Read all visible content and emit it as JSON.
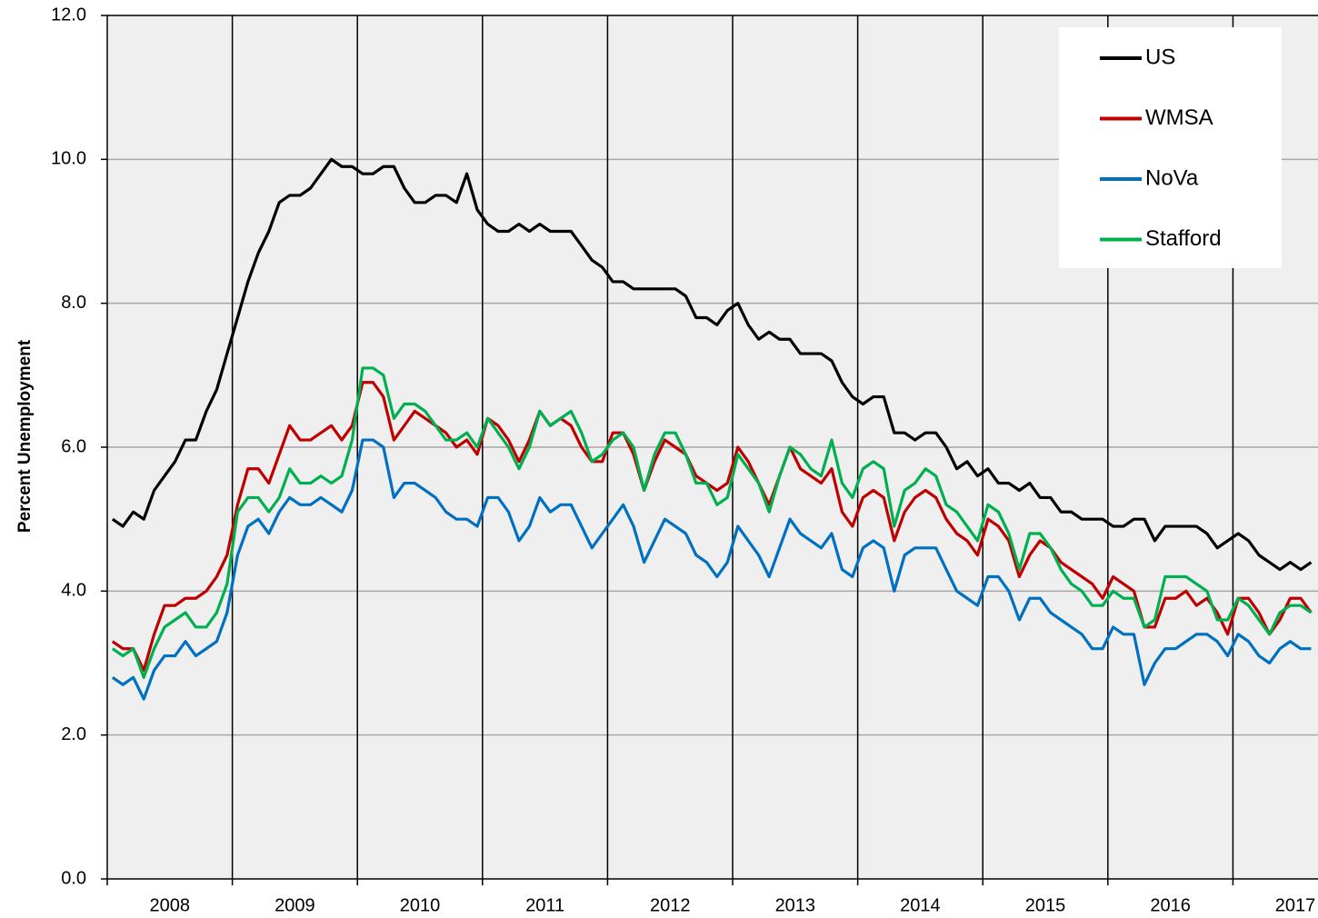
{
  "chart_data": {
    "type": "line",
    "ylabel": "Percent Unemployment",
    "x": [
      2008.042,
      2008.125,
      2008.208,
      2008.292,
      2008.375,
      2008.458,
      2008.542,
      2008.625,
      2008.708,
      2008.792,
      2008.875,
      2008.958,
      2009.042,
      2009.125,
      2009.208,
      2009.292,
      2009.375,
      2009.458,
      2009.542,
      2009.625,
      2009.708,
      2009.792,
      2009.875,
      2009.958,
      2010.042,
      2010.125,
      2010.208,
      2010.292,
      2010.375,
      2010.458,
      2010.542,
      2010.625,
      2010.708,
      2010.792,
      2010.875,
      2010.958,
      2011.042,
      2011.125,
      2011.208,
      2011.292,
      2011.375,
      2011.458,
      2011.542,
      2011.625,
      2011.708,
      2011.792,
      2011.875,
      2011.958,
      2012.042,
      2012.125,
      2012.208,
      2012.292,
      2012.375,
      2012.458,
      2012.542,
      2012.625,
      2012.708,
      2012.792,
      2012.875,
      2012.958,
      2013.042,
      2013.125,
      2013.208,
      2013.292,
      2013.375,
      2013.458,
      2013.542,
      2013.625,
      2013.708,
      2013.792,
      2013.875,
      2013.958,
      2014.042,
      2014.125,
      2014.208,
      2014.292,
      2014.375,
      2014.458,
      2014.542,
      2014.625,
      2014.708,
      2014.792,
      2014.875,
      2014.958,
      2015.042,
      2015.125,
      2015.208,
      2015.292,
      2015.375,
      2015.458,
      2015.542,
      2015.625,
      2015.708,
      2015.792,
      2015.875,
      2015.958,
      2016.042,
      2016.125,
      2016.208,
      2016.292,
      2016.375,
      2016.458,
      2016.542,
      2016.625,
      2016.708,
      2016.792,
      2016.875,
      2016.958,
      2017.042,
      2017.125,
      2017.208,
      2017.292,
      2017.375,
      2017.458,
      2017.542,
      2017.625
    ],
    "series": [
      {
        "name": "US",
        "color": "#000000",
        "values": [
          5.0,
          4.9,
          5.1,
          5.0,
          5.4,
          5.6,
          5.8,
          6.1,
          6.1,
          6.5,
          6.8,
          7.3,
          7.8,
          8.3,
          8.7,
          9.0,
          9.4,
          9.5,
          9.5,
          9.6,
          9.8,
          10.0,
          9.9,
          9.9,
          9.8,
          9.8,
          9.9,
          9.9,
          9.6,
          9.4,
          9.4,
          9.5,
          9.5,
          9.4,
          9.8,
          9.3,
          9.1,
          9.0,
          9.0,
          9.1,
          9.0,
          9.1,
          9.0,
          9.0,
          9.0,
          8.8,
          8.6,
          8.5,
          8.3,
          8.3,
          8.2,
          8.2,
          8.2,
          8.2,
          8.2,
          8.1,
          7.8,
          7.8,
          7.7,
          7.9,
          8.0,
          7.7,
          7.5,
          7.6,
          7.5,
          7.5,
          7.3,
          7.3,
          7.3,
          7.2,
          6.9,
          6.7,
          6.6,
          6.7,
          6.7,
          6.2,
          6.2,
          6.1,
          6.2,
          6.2,
          6.0,
          5.7,
          5.8,
          5.6,
          5.7,
          5.5,
          5.5,
          5.4,
          5.5,
          5.3,
          5.3,
          5.1,
          5.1,
          5.0,
          5.0,
          5.0,
          4.9,
          4.9,
          5.0,
          5.0,
          4.7,
          4.9,
          4.9,
          4.9,
          4.9,
          4.8,
          4.6,
          4.7,
          4.8,
          4.7,
          4.5,
          4.4,
          4.3,
          4.4,
          4.3,
          4.4
        ]
      },
      {
        "name": "WMSA",
        "color": "#c00000",
        "values": [
          3.3,
          3.2,
          3.2,
          2.9,
          3.4,
          3.8,
          3.8,
          3.9,
          3.9,
          4.0,
          4.2,
          4.5,
          5.2,
          5.7,
          5.7,
          5.5,
          5.9,
          6.3,
          6.1,
          6.1,
          6.2,
          6.3,
          6.1,
          6.3,
          6.9,
          6.9,
          6.7,
          6.1,
          6.3,
          6.5,
          6.4,
          6.3,
          6.2,
          6.0,
          6.1,
          5.9,
          6.4,
          6.3,
          6.1,
          5.8,
          6.1,
          6.5,
          6.3,
          6.4,
          6.3,
          6.0,
          5.8,
          5.8,
          6.2,
          6.2,
          5.9,
          5.4,
          5.8,
          6.1,
          6.0,
          5.9,
          5.6,
          5.5,
          5.4,
          5.5,
          6.0,
          5.8,
          5.5,
          5.2,
          5.6,
          6.0,
          5.7,
          5.6,
          5.5,
          5.7,
          5.1,
          4.9,
          5.3,
          5.4,
          5.3,
          4.7,
          5.1,
          5.3,
          5.4,
          5.3,
          5.0,
          4.8,
          4.7,
          4.5,
          5.0,
          4.9,
          4.7,
          4.2,
          4.5,
          4.7,
          4.6,
          4.4,
          4.3,
          4.2,
          4.1,
          3.9,
          4.2,
          4.1,
          4.0,
          3.5,
          3.5,
          3.9,
          3.9,
          4.0,
          3.8,
          3.9,
          3.7,
          3.4,
          3.9,
          3.9,
          3.7,
          3.4,
          3.6,
          3.9,
          3.9,
          3.7
        ]
      },
      {
        "name": "NoVa",
        "color": "#0070c0",
        "values": [
          2.8,
          2.7,
          2.8,
          2.5,
          2.9,
          3.1,
          3.1,
          3.3,
          3.1,
          3.2,
          3.3,
          3.7,
          4.5,
          4.9,
          5.0,
          4.8,
          5.1,
          5.3,
          5.2,
          5.2,
          5.3,
          5.2,
          5.1,
          5.4,
          6.1,
          6.1,
          6.0,
          5.3,
          5.5,
          5.5,
          5.4,
          5.3,
          5.1,
          5.0,
          5.0,
          4.9,
          5.3,
          5.3,
          5.1,
          4.7,
          4.9,
          5.3,
          5.1,
          5.2,
          5.2,
          4.9,
          4.6,
          4.8,
          5.0,
          5.2,
          4.9,
          4.4,
          4.7,
          5.0,
          4.9,
          4.8,
          4.5,
          4.4,
          4.2,
          4.4,
          4.9,
          4.7,
          4.5,
          4.2,
          4.6,
          5.0,
          4.8,
          4.7,
          4.6,
          4.8,
          4.3,
          4.2,
          4.6,
          4.7,
          4.6,
          4.0,
          4.5,
          4.6,
          4.6,
          4.6,
          4.3,
          4.0,
          3.9,
          3.8,
          4.2,
          4.2,
          4.0,
          3.6,
          3.9,
          3.9,
          3.7,
          3.6,
          3.5,
          3.4,
          3.2,
          3.2,
          3.5,
          3.4,
          3.4,
          2.7,
          3.0,
          3.2,
          3.2,
          3.3,
          3.4,
          3.4,
          3.3,
          3.1,
          3.4,
          3.3,
          3.1,
          3.0,
          3.2,
          3.3,
          3.2,
          3.2
        ]
      },
      {
        "name": "Stafford",
        "color": "#00b050",
        "values": [
          3.2,
          3.1,
          3.2,
          2.8,
          3.2,
          3.5,
          3.6,
          3.7,
          3.5,
          3.5,
          3.7,
          4.1,
          5.1,
          5.3,
          5.3,
          5.1,
          5.3,
          5.7,
          5.5,
          5.5,
          5.6,
          5.5,
          5.6,
          6.1,
          7.1,
          7.1,
          7.0,
          6.4,
          6.6,
          6.6,
          6.5,
          6.3,
          6.1,
          6.1,
          6.2,
          6.0,
          6.4,
          6.2,
          6.0,
          5.7,
          6.0,
          6.5,
          6.3,
          6.4,
          6.5,
          6.2,
          5.8,
          5.9,
          6.1,
          6.2,
          6.0,
          5.4,
          5.9,
          6.2,
          6.2,
          5.9,
          5.5,
          5.5,
          5.2,
          5.3,
          5.9,
          5.7,
          5.5,
          5.1,
          5.6,
          6.0,
          5.9,
          5.7,
          5.6,
          6.1,
          5.5,
          5.3,
          5.7,
          5.8,
          5.7,
          4.9,
          5.4,
          5.5,
          5.7,
          5.6,
          5.2,
          5.1,
          4.9,
          4.7,
          5.2,
          5.1,
          4.8,
          4.3,
          4.8,
          4.8,
          4.6,
          4.3,
          4.1,
          4.0,
          3.8,
          3.8,
          4.0,
          3.9,
          3.9,
          3.5,
          3.6,
          4.2,
          4.2,
          4.2,
          4.1,
          4.0,
          3.6,
          3.6,
          3.9,
          3.8,
          3.6,
          3.4,
          3.7,
          3.8,
          3.8,
          3.7
        ]
      }
    ],
    "xlim": [
      2008,
      2017.68
    ],
    "xticks": [
      2008,
      2009,
      2010,
      2011,
      2012,
      2013,
      2014,
      2015,
      2016,
      2017
    ],
    "ylim": [
      0,
      12
    ],
    "yticks": [
      {
        "value": 0,
        "label": "0.0"
      },
      {
        "value": 2,
        "label": "2.0"
      },
      {
        "value": 4,
        "label": "4.0"
      },
      {
        "value": 6,
        "label": "6.0"
      },
      {
        "value": 8,
        "label": "8.0"
      },
      {
        "value": 10,
        "label": "10.0"
      },
      {
        "value": 12,
        "label": "12.0"
      }
    ],
    "grid": true,
    "legend": "upper right"
  }
}
